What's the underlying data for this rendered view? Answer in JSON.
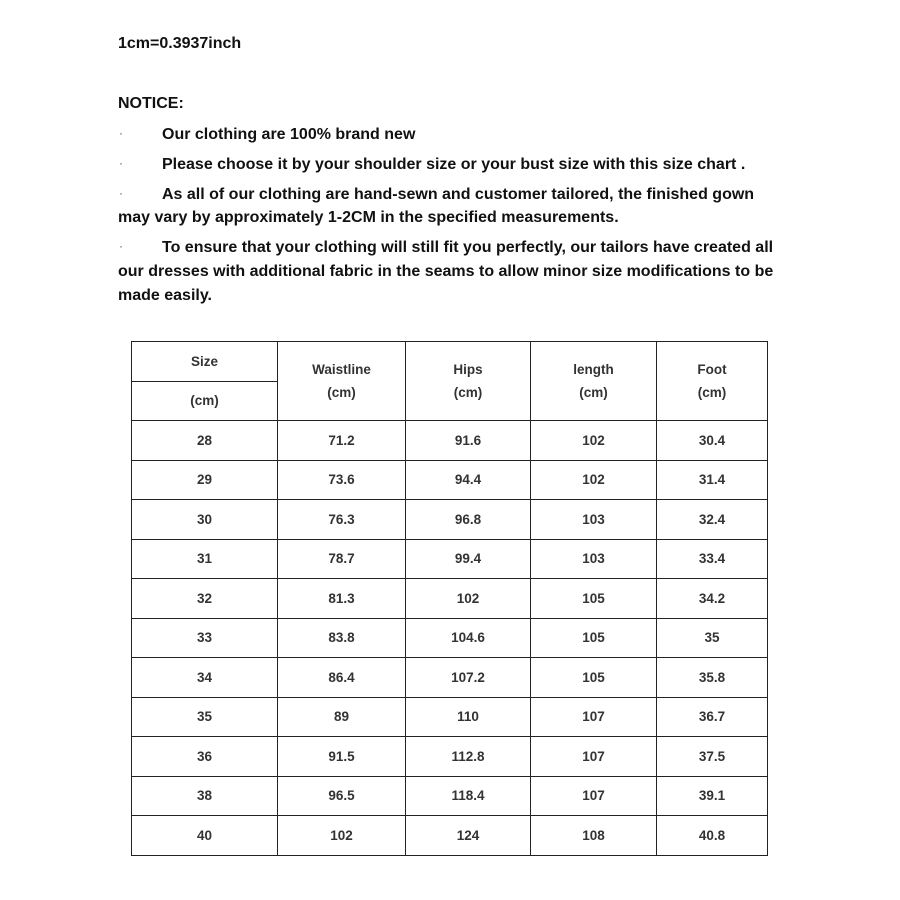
{
  "conversion": "1cm=0.3937inch",
  "notice": {
    "title": "NOTICE:",
    "bullet": "·",
    "items": [
      {
        "lines": [
          "Our clothing are 100% brand new"
        ]
      },
      {
        "lines": [
          "Please choose it by your shoulder size or your bust size with this size chart ."
        ]
      },
      {
        "lines": [
          "As all of our clothing are hand-sewn and customer tailored, the finished gown",
          "may vary by approximately 1-2CM in the specified measurements."
        ]
      },
      {
        "lines": [
          "To ensure that your clothing will still fit you perfectly, our tailors have created all",
          "our dresses with additional fabric in the seams to allow minor size modifications to be",
          "made easily."
        ]
      }
    ]
  },
  "size_table": {
    "headers": {
      "size": "Size",
      "size_unit": "(cm)",
      "waistline": "Waistline",
      "waistline_unit": "(cm)",
      "hips": "Hips",
      "hips_unit": "(cm)",
      "length": "length",
      "length_unit": "(cm)",
      "foot": "Foot",
      "foot_unit": "(cm)"
    },
    "rows": [
      [
        "28",
        "71.2",
        "91.6",
        "102",
        "30.4"
      ],
      [
        "29",
        "73.6",
        "94.4",
        "102",
        "31.4"
      ],
      [
        "30",
        "76.3",
        "96.8",
        "103",
        "32.4"
      ],
      [
        "31",
        "78.7",
        "99.4",
        "103",
        "33.4"
      ],
      [
        "32",
        "81.3",
        "102",
        "105",
        "34.2"
      ],
      [
        "33",
        "83.8",
        "104.6",
        "105",
        "35"
      ],
      [
        "34",
        "86.4",
        "107.2",
        "105",
        "35.8"
      ],
      [
        "35",
        "89",
        "110",
        "107",
        "36.7"
      ],
      [
        "36",
        "91.5",
        "112.8",
        "107",
        "37.5"
      ],
      [
        "38",
        "96.5",
        "118.4",
        "107",
        "39.1"
      ],
      [
        "40",
        "102",
        "124",
        "108",
        "40.8"
      ]
    ]
  }
}
